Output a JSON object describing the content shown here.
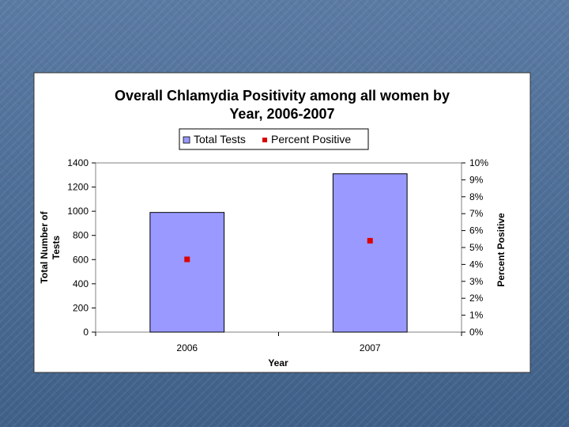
{
  "chart_data": {
    "type": "bar",
    "title_line1": "Overall Chlamydia Positivity among all women by",
    "title_line2": "Year, 2006-2007",
    "categories": [
      "2006",
      "2007"
    ],
    "series": [
      {
        "name": "Total Tests",
        "kind": "bar",
        "axis": "left",
        "values": [
          990,
          1310
        ],
        "color": "#9999ff"
      },
      {
        "name": "Percent Positive",
        "kind": "marker",
        "axis": "right",
        "values": [
          4.3,
          5.4
        ],
        "color": "#dd0000"
      }
    ],
    "xlabel": "Year",
    "ylabel_left_line1": "Total Number of",
    "ylabel_left_line2": "Tests",
    "ylabel_right": "Percent Positive",
    "ylim_left": [
      0,
      1400
    ],
    "yticks_left": [
      "0",
      "200",
      "400",
      "600",
      "800",
      "1000",
      "1200",
      "1400"
    ],
    "ylim_right": [
      0,
      10
    ],
    "yticks_right": [
      "0%",
      "1%",
      "2%",
      "3%",
      "4%",
      "5%",
      "6%",
      "7%",
      "8%",
      "9%",
      "10%"
    ],
    "grid": false,
    "legend_position": "top"
  }
}
